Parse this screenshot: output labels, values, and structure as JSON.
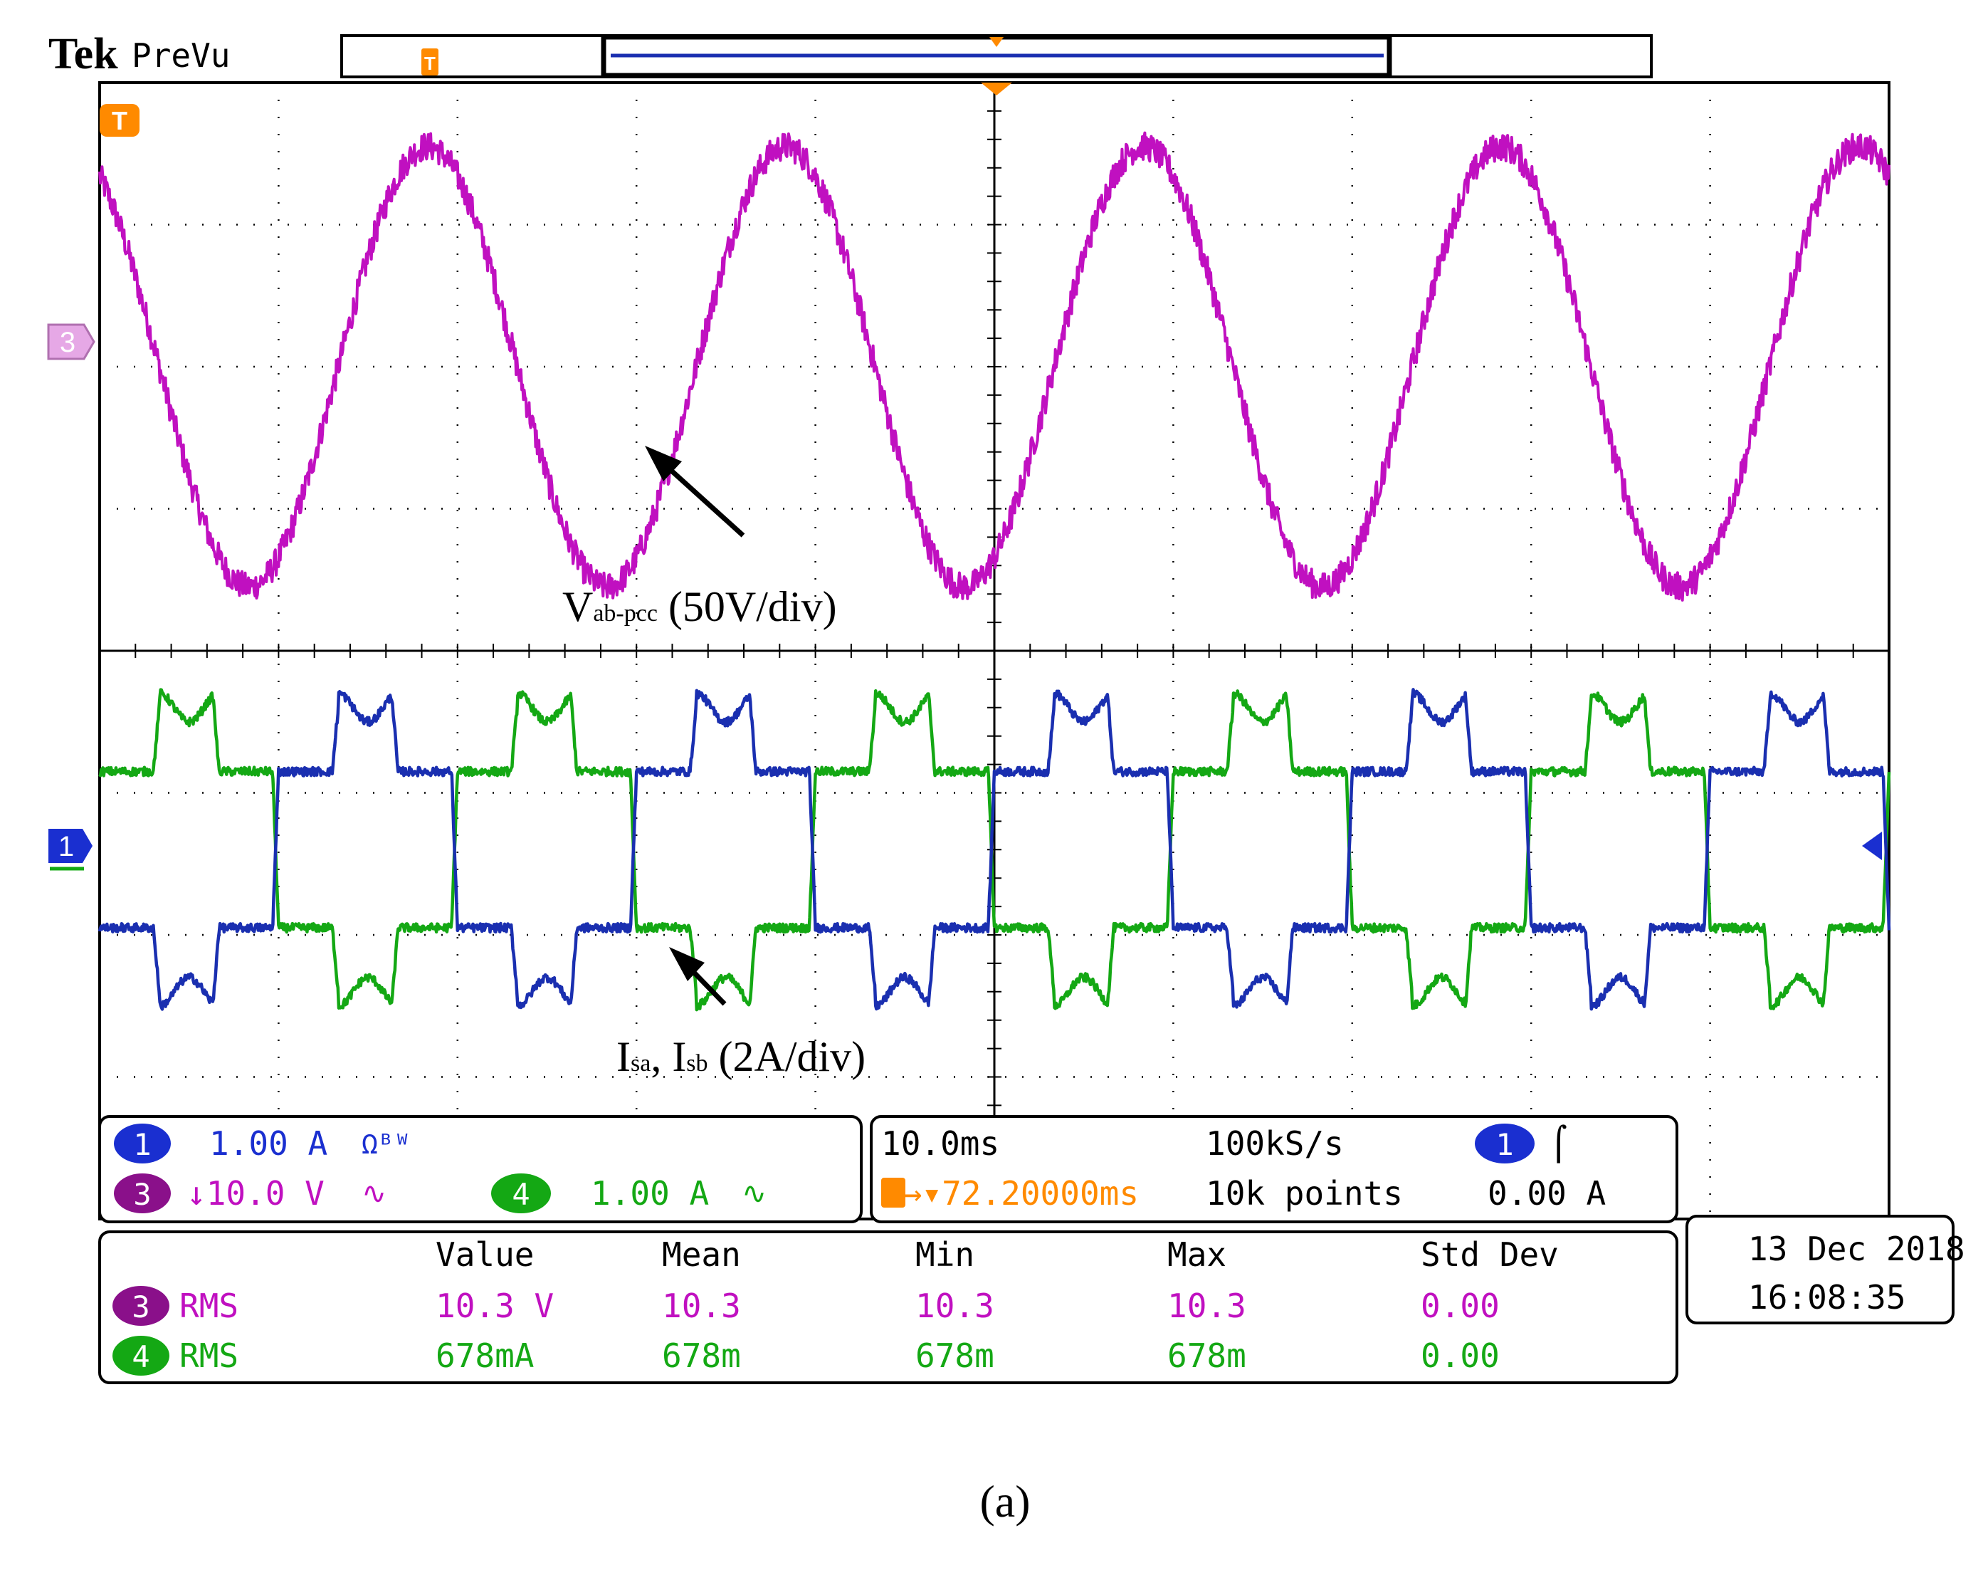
{
  "header": {
    "brand": "Tek",
    "mode": "PreVu"
  },
  "colors": {
    "ch1": "#1a2fb0",
    "ch3": "#c010c0",
    "ch4": "#14a814",
    "trigger": "#ff8a00",
    "grid": "#000000"
  },
  "chart_data": {
    "type": "line",
    "title": "",
    "xlabel": "",
    "ylabel": "",
    "x_divisions": 10,
    "y_divisions": 8,
    "time_per_div_ms": 10.0,
    "x_range_ms": [
      0,
      100
    ],
    "series": [
      {
        "name": "Vab-pcc",
        "channel": "3",
        "color": "#c010c0",
        "shape": "sine",
        "frequency_hz": 50,
        "amplitude_div": 1.55,
        "offset_div": 2.0,
        "phase_deg": 120,
        "noise_div": 0.1
      },
      {
        "name": "Isa",
        "channel": "4",
        "color": "#14a814",
        "shape": "six-step",
        "frequency_hz": 50,
        "amplitude_div": 1.0,
        "offset_div": -1.4,
        "phase_deg": 0
      },
      {
        "name": "Isb",
        "channel": "1",
        "color": "#1a2fb0",
        "shape": "six-step",
        "frequency_hz": 50,
        "amplitude_div": 1.0,
        "offset_div": -1.4,
        "phase_deg": 180
      }
    ],
    "annotations": {
      "voltage": {
        "main": "V",
        "sub": "ab-pcc",
        "rest": " (50V/div)"
      },
      "current": {
        "main1": "I",
        "sub1": "sa",
        "sep": ", ",
        "main2": "I",
        "sub2": "sb",
        "rest": " (2A/div)"
      }
    },
    "markers": {
      "ch3": "3",
      "ch1": "1",
      "trigger": "T"
    }
  },
  "channel_panel": {
    "ch1": {
      "num": "1",
      "scale": "1.00 A",
      "flags": "Ωᴮᵂ"
    },
    "ch3": {
      "num": "3",
      "scale": "↓10.0 V",
      "flags": "∿"
    },
    "ch4": {
      "num": "4",
      "scale": "1.00 A",
      "flags": "∿"
    }
  },
  "timebase_panel": {
    "time_div": "10.0ms",
    "sample_rate": "100kS/s",
    "trigger_pos": "T→▾72.20000ms",
    "record_length": "10k points",
    "trig_channel": "1",
    "trig_slope": "⌠",
    "trig_level": "0.00 A"
  },
  "measurements": {
    "headers": [
      "Value",
      "Mean",
      "Min",
      "Max",
      "Std Dev"
    ],
    "rows": [
      {
        "channel": "3",
        "type": "RMS",
        "value": "10.3 V",
        "mean": "10.3",
        "min": "10.3",
        "max": "10.3",
        "std": "0.00"
      },
      {
        "channel": "4",
        "type": "RMS",
        "value": "678mA",
        "mean": "678m",
        "min": "678m",
        "max": "678m",
        "std": "0.00"
      }
    ]
  },
  "datetime": {
    "date": "13 Dec  2018",
    "time": "16:08:35"
  },
  "caption": "(a)"
}
